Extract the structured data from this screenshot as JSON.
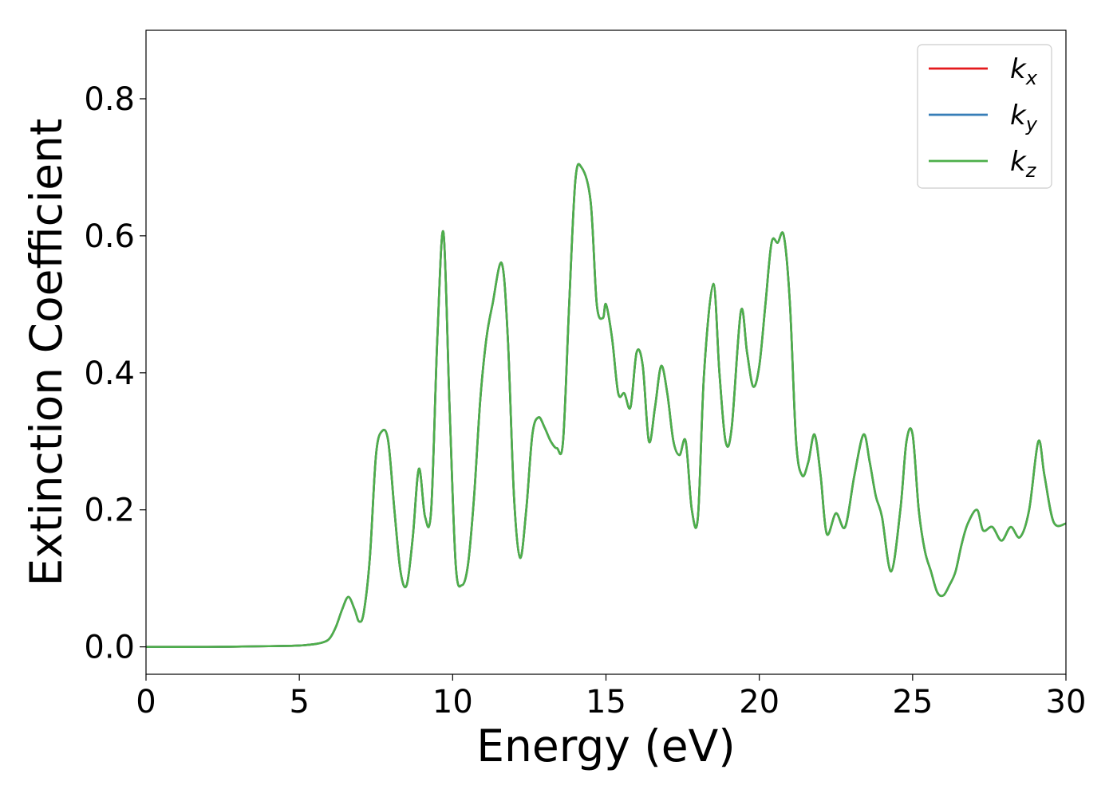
{
  "chart_data": {
    "type": "line",
    "title": "",
    "xlabel": "Energy (eV)",
    "ylabel": "Extinction Coefficient",
    "xlim": [
      0,
      30
    ],
    "ylim": [
      -0.04,
      0.9
    ],
    "xticks": [
      0,
      5,
      10,
      15,
      20,
      25,
      30
    ],
    "xtick_labels": [
      "0",
      "5",
      "10",
      "15",
      "20",
      "25",
      "30"
    ],
    "yticks": [
      0.0,
      0.2,
      0.4,
      0.6,
      0.8
    ],
    "ytick_labels": [
      "0.0",
      "0.2",
      "0.4",
      "0.6",
      "0.8"
    ],
    "grid": false,
    "legend_position": "top-right",
    "x": [
      0,
      2,
      4,
      5,
      5.5,
      5.8,
      6.0,
      6.2,
      6.4,
      6.6,
      6.8,
      6.95,
      7.1,
      7.3,
      7.5,
      7.7,
      7.9,
      8.1,
      8.3,
      8.5,
      8.7,
      8.9,
      9.1,
      9.3,
      9.5,
      9.7,
      9.9,
      10.1,
      10.3,
      10.5,
      10.7,
      10.9,
      11.1,
      11.3,
      11.6,
      11.8,
      12.0,
      12.2,
      12.4,
      12.6,
      12.8,
      13.0,
      13.2,
      13.4,
      13.6,
      13.8,
      14.0,
      14.2,
      14.5,
      14.7,
      14.9,
      15.0,
      15.2,
      15.4,
      15.6,
      15.8,
      16.0,
      16.2,
      16.4,
      16.6,
      16.8,
      17.0,
      17.2,
      17.4,
      17.6,
      17.8,
      18.0,
      18.2,
      18.5,
      18.7,
      18.9,
      19.1,
      19.4,
      19.6,
      19.8,
      20.0,
      20.2,
      20.4,
      20.6,
      20.8,
      21.0,
      21.2,
      21.4,
      21.6,
      21.8,
      22.0,
      22.2,
      22.5,
      22.8,
      23.1,
      23.4,
      23.6,
      23.8,
      24.0,
      24.3,
      24.6,
      24.8,
      25.0,
      25.2,
      25.4,
      25.6,
      25.8,
      26.0,
      26.2,
      26.4,
      26.6,
      26.8,
      27.1,
      27.3,
      27.6,
      27.9,
      28.2,
      28.5,
      28.8,
      29.1,
      29.3,
      29.6,
      30.0
    ],
    "series": [
      {
        "name": "k",
        "subscript": "x",
        "color": "#e41a1c",
        "y": [
          0.0,
          0.0,
          0.001,
          0.002,
          0.004,
          0.007,
          0.013,
          0.03,
          0.055,
          0.073,
          0.055,
          0.037,
          0.05,
          0.13,
          0.28,
          0.315,
          0.3,
          0.2,
          0.11,
          0.09,
          0.16,
          0.26,
          0.19,
          0.2,
          0.45,
          0.605,
          0.35,
          0.12,
          0.09,
          0.12,
          0.22,
          0.36,
          0.45,
          0.5,
          0.56,
          0.45,
          0.22,
          0.13,
          0.2,
          0.31,
          0.335,
          0.32,
          0.3,
          0.29,
          0.3,
          0.5,
          0.68,
          0.7,
          0.65,
          0.5,
          0.48,
          0.5,
          0.45,
          0.37,
          0.37,
          0.35,
          0.43,
          0.41,
          0.3,
          0.35,
          0.41,
          0.37,
          0.3,
          0.28,
          0.3,
          0.2,
          0.19,
          0.4,
          0.53,
          0.4,
          0.3,
          0.32,
          0.49,
          0.43,
          0.38,
          0.41,
          0.5,
          0.59,
          0.59,
          0.6,
          0.5,
          0.3,
          0.25,
          0.27,
          0.31,
          0.25,
          0.165,
          0.195,
          0.175,
          0.25,
          0.31,
          0.27,
          0.22,
          0.19,
          0.11,
          0.2,
          0.3,
          0.31,
          0.2,
          0.14,
          0.11,
          0.08,
          0.075,
          0.09,
          0.11,
          0.15,
          0.18,
          0.2,
          0.17,
          0.175,
          0.155,
          0.175,
          0.16,
          0.2,
          0.3,
          0.25,
          0.182,
          0.18
        ]
      },
      {
        "name": "k",
        "subscript": "y",
        "color": "#377eb8",
        "y": [
          0.0,
          0.0,
          0.001,
          0.002,
          0.004,
          0.007,
          0.013,
          0.03,
          0.055,
          0.073,
          0.055,
          0.037,
          0.05,
          0.13,
          0.28,
          0.315,
          0.3,
          0.2,
          0.11,
          0.09,
          0.16,
          0.26,
          0.19,
          0.2,
          0.45,
          0.605,
          0.35,
          0.12,
          0.09,
          0.12,
          0.22,
          0.36,
          0.45,
          0.5,
          0.56,
          0.45,
          0.22,
          0.13,
          0.2,
          0.31,
          0.335,
          0.32,
          0.3,
          0.29,
          0.3,
          0.5,
          0.68,
          0.7,
          0.65,
          0.5,
          0.48,
          0.5,
          0.45,
          0.37,
          0.37,
          0.35,
          0.43,
          0.41,
          0.3,
          0.35,
          0.41,
          0.37,
          0.3,
          0.28,
          0.3,
          0.2,
          0.19,
          0.4,
          0.53,
          0.4,
          0.3,
          0.32,
          0.49,
          0.43,
          0.38,
          0.41,
          0.5,
          0.59,
          0.59,
          0.6,
          0.5,
          0.3,
          0.25,
          0.27,
          0.31,
          0.25,
          0.165,
          0.195,
          0.175,
          0.25,
          0.31,
          0.27,
          0.22,
          0.19,
          0.11,
          0.2,
          0.3,
          0.31,
          0.2,
          0.14,
          0.11,
          0.08,
          0.075,
          0.09,
          0.11,
          0.15,
          0.18,
          0.2,
          0.17,
          0.175,
          0.155,
          0.175,
          0.16,
          0.2,
          0.3,
          0.25,
          0.182,
          0.18
        ]
      },
      {
        "name": "k",
        "subscript": "z",
        "color": "#4daf4a",
        "y": [
          0.0,
          0.0,
          0.001,
          0.002,
          0.004,
          0.007,
          0.013,
          0.03,
          0.055,
          0.073,
          0.055,
          0.037,
          0.05,
          0.13,
          0.28,
          0.315,
          0.3,
          0.2,
          0.11,
          0.09,
          0.16,
          0.26,
          0.19,
          0.2,
          0.45,
          0.605,
          0.35,
          0.12,
          0.09,
          0.12,
          0.22,
          0.36,
          0.45,
          0.5,
          0.56,
          0.45,
          0.22,
          0.13,
          0.2,
          0.31,
          0.335,
          0.32,
          0.3,
          0.29,
          0.3,
          0.5,
          0.68,
          0.7,
          0.65,
          0.5,
          0.48,
          0.5,
          0.45,
          0.37,
          0.37,
          0.35,
          0.43,
          0.41,
          0.3,
          0.35,
          0.41,
          0.37,
          0.3,
          0.28,
          0.3,
          0.2,
          0.19,
          0.4,
          0.53,
          0.4,
          0.3,
          0.32,
          0.49,
          0.43,
          0.38,
          0.41,
          0.5,
          0.59,
          0.59,
          0.6,
          0.5,
          0.3,
          0.25,
          0.27,
          0.31,
          0.25,
          0.165,
          0.195,
          0.175,
          0.25,
          0.31,
          0.27,
          0.22,
          0.19,
          0.11,
          0.2,
          0.3,
          0.31,
          0.2,
          0.14,
          0.11,
          0.08,
          0.075,
          0.09,
          0.11,
          0.15,
          0.18,
          0.2,
          0.17,
          0.175,
          0.155,
          0.175,
          0.16,
          0.2,
          0.3,
          0.25,
          0.182,
          0.18
        ]
      }
    ]
  }
}
